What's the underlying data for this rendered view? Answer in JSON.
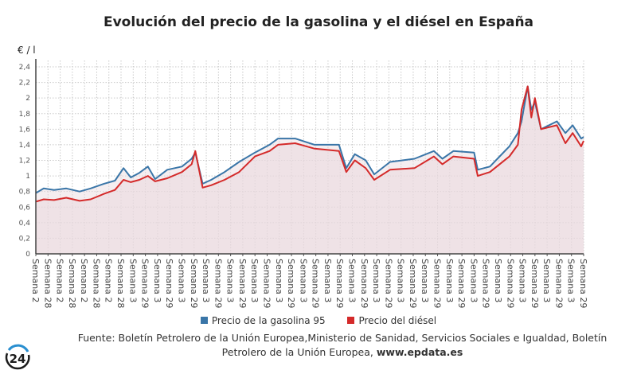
{
  "title": "Evolución del precio de la gasolina y el diésel en España",
  "chart_data": {
    "type": "line",
    "title": "Evolución del precio de la gasolina y el diésel en España",
    "ylabel": "€ / l",
    "xlabel": "",
    "ylim": [
      0,
      2.4
    ],
    "yticks": [
      "0",
      "0,2",
      "0,4",
      "0,6",
      "0,8",
      "1",
      "1,2",
      "1,4",
      "1,6",
      "1,8",
      "2",
      "2,2",
      "2,4"
    ],
    "grid": true,
    "legend_position": "bottom",
    "x_tick_labels": [
      "Semana 2",
      "Semana 28",
      "Semana 2",
      "Semana 28",
      "Semana 2",
      "Semana 28",
      "Semana 2",
      "Semana 28",
      "Semana 3",
      "Semana 29",
      "Semana 3",
      "Semana 29",
      "Semana 3",
      "Semana 29",
      "Semana 3",
      "Semana 29",
      "Semana 3",
      "Semana 29",
      "Semana 3",
      "Semana 29",
      "Semana 3",
      "Semana 29",
      "Semana 3",
      "Semana 29",
      "Semana 3",
      "Semana 29",
      "Semana 3",
      "Semana 29",
      "Semana 3",
      "Semana 29",
      "Semana 3",
      "Semana 29",
      "Semana 3",
      "Semana 29",
      "Semana 3",
      "Semana 29",
      "Semana 3",
      "Semana 29",
      "Semana 3",
      "Semana 29",
      "Semana 3",
      "Semana 29",
      "Semana 3",
      "Semana 29",
      "Semana 3",
      "Semana 29"
    ],
    "series": [
      {
        "name": "Precio de la gasolina 95",
        "color": "#3a76a8",
        "x": [
          0,
          0.65,
          1.5,
          2.5,
          3.6,
          4.5,
          5.6,
          6.5,
          7.2,
          7.8,
          8.5,
          9.2,
          9.8,
          10.8,
          12,
          12.8,
          13.1,
          13.7,
          14.4,
          15.5,
          16.7,
          18,
          19.2,
          19.9,
          21.3,
          22.9,
          24.9,
          25.5,
          26.2,
          27.1,
          27.8,
          29.1,
          31.1,
          32.7,
          33.4,
          34.3,
          36,
          36.3,
          37.3,
          38.9,
          39.6,
          39.9,
          40.4,
          40.7,
          41,
          41.5,
          42.8,
          43.5,
          44.1,
          44.8,
          45
        ],
        "y": [
          0.78,
          0.84,
          0.82,
          0.84,
          0.8,
          0.84,
          0.9,
          0.94,
          1.1,
          0.98,
          1.04,
          1.12,
          0.96,
          1.08,
          1.12,
          1.22,
          1.3,
          0.9,
          0.95,
          1.05,
          1.18,
          1.3,
          1.4,
          1.48,
          1.48,
          1.4,
          1.4,
          1.1,
          1.28,
          1.2,
          1.02,
          1.18,
          1.22,
          1.32,
          1.22,
          1.32,
          1.3,
          1.08,
          1.12,
          1.38,
          1.55,
          1.7,
          2.15,
          1.85,
          1.95,
          1.6,
          1.7,
          1.55,
          1.65,
          1.48,
          1.5
        ]
      },
      {
        "name": "Precio del diésel",
        "color": "#d42a2a",
        "x": [
          0,
          0.65,
          1.5,
          2.5,
          3.6,
          4.5,
          5.6,
          6.5,
          7.2,
          7.8,
          8.5,
          9.2,
          9.8,
          10.8,
          12,
          12.8,
          13.1,
          13.7,
          14.4,
          15.5,
          16.7,
          18,
          19.2,
          19.9,
          21.3,
          22.9,
          24.9,
          25.5,
          26.2,
          27.1,
          27.8,
          29.1,
          31.1,
          32.7,
          33.4,
          34.3,
          36,
          36.3,
          37.3,
          38.9,
          39.6,
          39.9,
          40.4,
          40.7,
          41,
          41.5,
          42.8,
          43.5,
          44.1,
          44.8,
          45
        ],
        "y": [
          0.67,
          0.7,
          0.69,
          0.72,
          0.68,
          0.7,
          0.77,
          0.82,
          0.95,
          0.92,
          0.95,
          1.0,
          0.93,
          0.97,
          1.05,
          1.15,
          1.32,
          0.85,
          0.88,
          0.95,
          1.05,
          1.25,
          1.32,
          1.4,
          1.42,
          1.35,
          1.32,
          1.05,
          1.2,
          1.1,
          0.95,
          1.08,
          1.1,
          1.25,
          1.15,
          1.25,
          1.22,
          1.0,
          1.05,
          1.25,
          1.4,
          1.85,
          2.15,
          1.75,
          2.0,
          1.6,
          1.65,
          1.42,
          1.55,
          1.38,
          1.45
        ]
      }
    ]
  },
  "legend": {
    "gasoline": "Precio de la gasolina 95",
    "diesel": "Precio del diésel"
  },
  "source": {
    "text": "Fuente: Boletín Petrolero de la Unión Europea,Ministerio de Sanidad, Servicios Sociales e Igualdad, Boletín Petrolero de la Unión Europea, ",
    "site": "www.epdata.es"
  },
  "logo": "24"
}
